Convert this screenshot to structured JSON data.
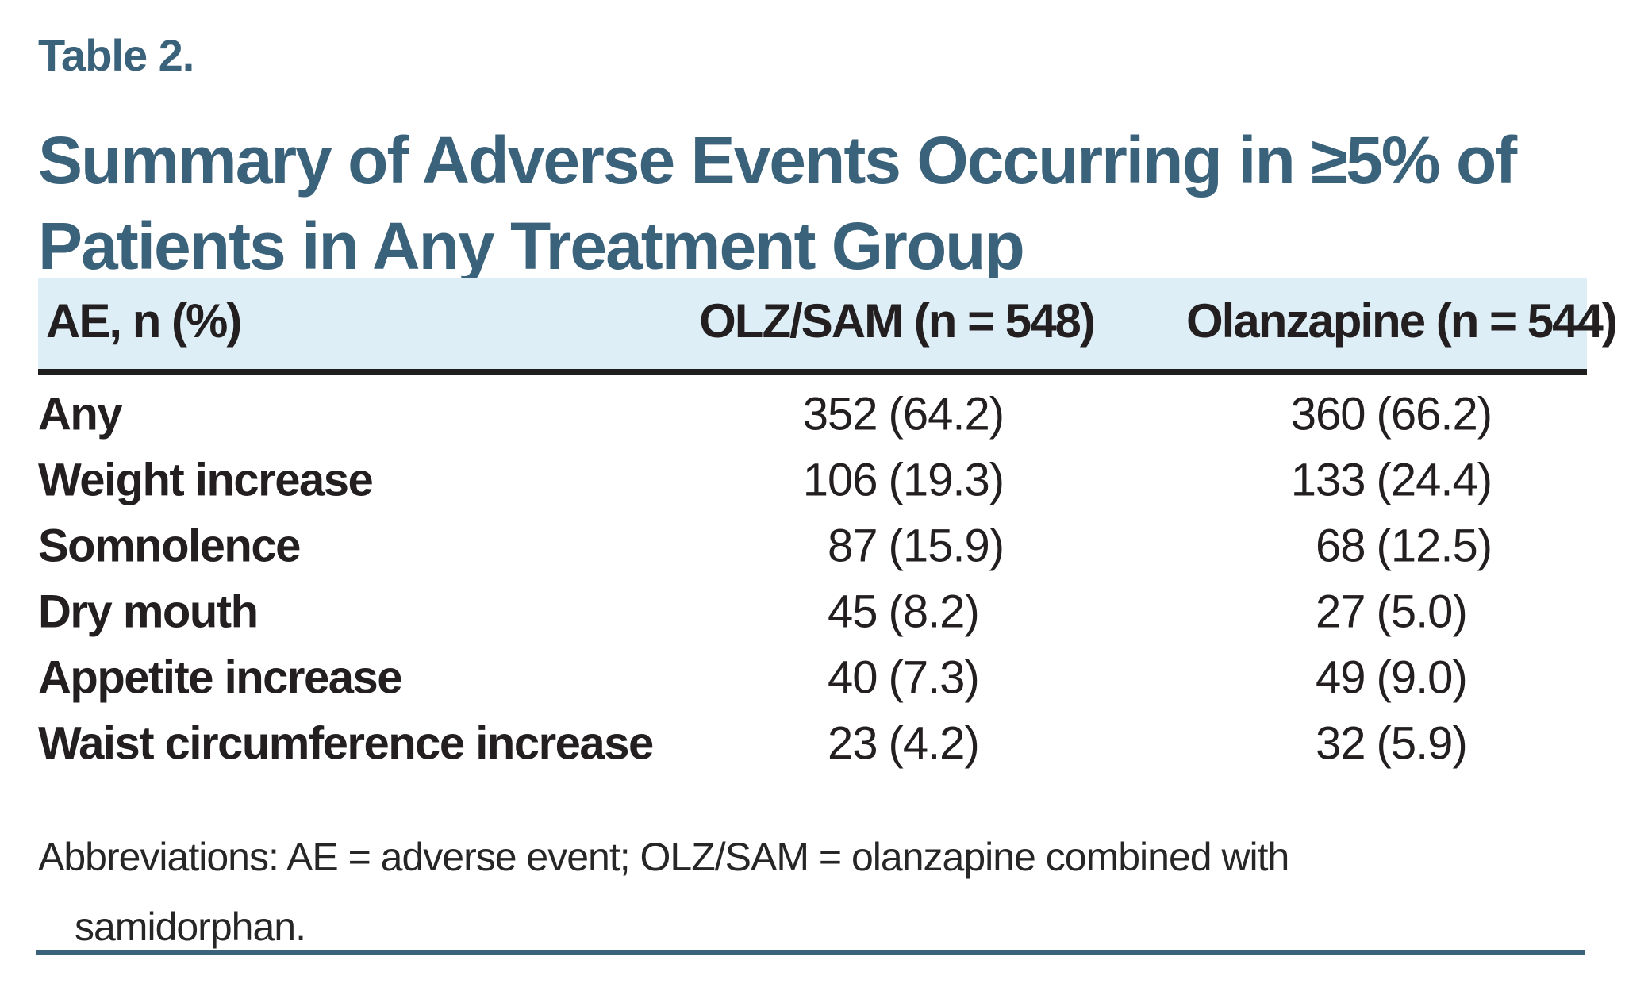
{
  "page": {
    "table_label": "Table 2.",
    "title_line1": "Summary of Adverse Events Occurring in ≥5% of",
    "title_line2": "Patients in Any Treatment Group"
  },
  "header": {
    "ae": "AE, n (%)",
    "col2": "OLZ/SAM (n = 548)",
    "col3": "Olanzapine (n = 544)"
  },
  "rows": [
    {
      "label": "Any",
      "c2n": "352",
      "c2p": "(64.2)",
      "c3n": "360",
      "c3p": "(66.2)"
    },
    {
      "label": "Weight increase",
      "c2n": "106",
      "c2p": "(19.3)",
      "c3n": "133",
      "c3p": "(24.4)"
    },
    {
      "label": "Somnolence",
      "c2n": "87",
      "c2p": "(15.9)",
      "c3n": "68",
      "c3p": "(12.5)"
    },
    {
      "label": "Dry mouth",
      "c2n": "45",
      "c2p": "(8.2)",
      "c3n": "27",
      "c3p": "(5.0)"
    },
    {
      "label": "Appetite increase",
      "c2n": "40",
      "c2p": "(7.3)",
      "c3n": "49",
      "c3p": "(9.0)"
    },
    {
      "label": "Waist circumference increase",
      "c2n": "23",
      "c2p": "(4.2)",
      "c3n": "32",
      "c3p": "(5.9)"
    }
  ],
  "footnote": {
    "line1": "Abbreviations: AE = adverse event; OLZ/SAM = olanzapine combined with",
    "line2": "samidorphan."
  },
  "colors": {
    "accent_teal": "#3A627B",
    "header_band_blue": "#DEEEF6",
    "text_black": "#231F20"
  },
  "chart_data": {
    "type": "table",
    "title": "Table 2. Summary of Adverse Events Occurring in ≥5% of Patients in Any Treatment Group",
    "columns": [
      "AE, n (%)",
      "OLZ/SAM (n = 548)",
      "Olanzapine (n = 544)"
    ],
    "rows": [
      [
        "Any",
        "352 (64.2)",
        "360 (66.2)"
      ],
      [
        "Weight increase",
        "106 (19.3)",
        "133 (24.4)"
      ],
      [
        "Somnolence",
        "87 (15.9)",
        "68 (12.5)"
      ],
      [
        "Dry mouth",
        "45 (8.2)",
        "27 (5.0)"
      ],
      [
        "Appetite increase",
        "40 (7.3)",
        "49 (9.0)"
      ],
      [
        "Waist circumference increase",
        "23 (4.2)",
        "32 (5.9)"
      ]
    ],
    "footnote": "Abbreviations: AE = adverse event; OLZ/SAM = olanzapine combined with samidorphan."
  }
}
